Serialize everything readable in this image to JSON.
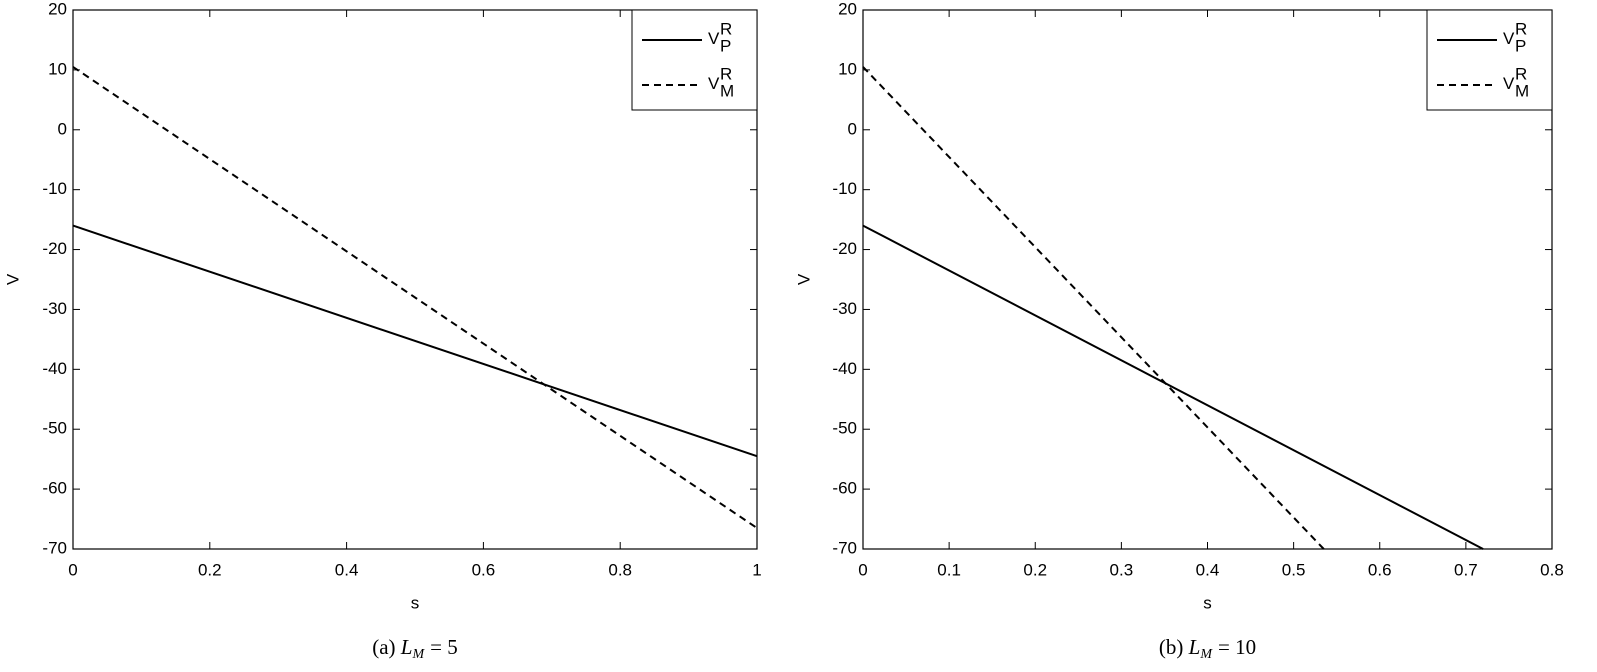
{
  "chart_data": [
    {
      "type": "line",
      "xlabel": "s",
      "ylabel": "V",
      "caption": {
        "prefix": "(a)",
        "variable": "L",
        "subscript": "M",
        "relation": "= 5"
      },
      "xlim": [
        0,
        1
      ],
      "xticks": [
        0,
        0.2,
        0.4,
        0.6,
        0.8,
        1
      ],
      "ylim": [
        -70,
        20
      ],
      "yticks": [
        -70,
        -60,
        -50,
        -40,
        -30,
        -20,
        -10,
        0,
        10,
        20
      ],
      "legend": "upper right",
      "x": [
        0,
        1
      ],
      "series": [
        {
          "name": "V",
          "superscript": "R",
          "subscript": "P",
          "color": "#000000",
          "dash": "solid",
          "values": [
            -16,
            -54.5
          ]
        },
        {
          "name": "V",
          "superscript": "R",
          "subscript": "M",
          "color": "#000000",
          "dash": "dashed",
          "values": [
            10.5,
            -66.5
          ]
        }
      ]
    },
    {
      "type": "line",
      "xlabel": "s",
      "ylabel": "V",
      "caption": {
        "prefix": "(b)",
        "variable": "L",
        "subscript": "M",
        "relation": "= 10"
      },
      "xlim": [
        0,
        0.8
      ],
      "xticks": [
        0,
        0.1,
        0.2,
        0.3,
        0.4,
        0.5,
        0.6,
        0.7,
        0.8
      ],
      "ylim": [
        -70,
        20
      ],
      "yticks": [
        -70,
        -60,
        -50,
        -40,
        -30,
        -20,
        -10,
        0,
        10,
        20
      ],
      "legend": "upper right",
      "series": [
        {
          "name": "V",
          "superscript": "R",
          "subscript": "P",
          "color": "#000000",
          "dash": "solid",
          "x": [
            0,
            0.72
          ],
          "values": [
            -16,
            -70
          ]
        },
        {
          "name": "V",
          "superscript": "R",
          "subscript": "M",
          "color": "#000000",
          "dash": "dashed",
          "x": [
            0,
            0.535
          ],
          "values": [
            10.5,
            -70
          ]
        }
      ]
    }
  ]
}
